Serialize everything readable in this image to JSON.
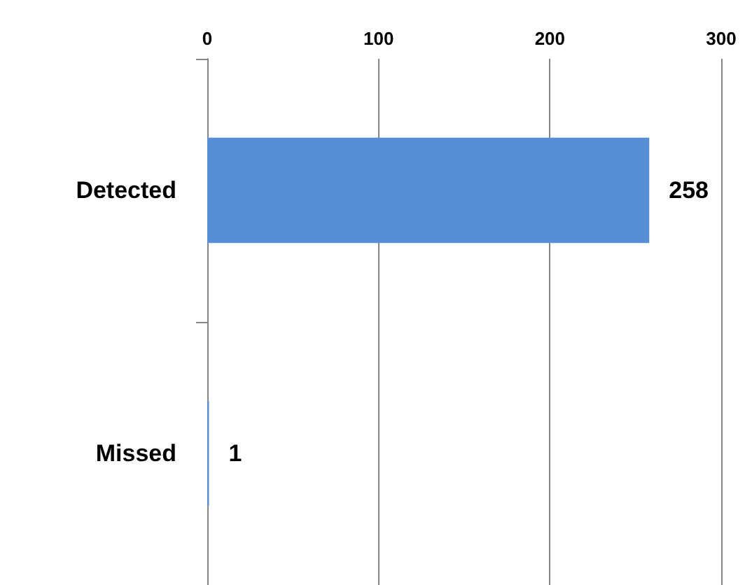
{
  "chart_data": {
    "type": "bar",
    "orientation": "horizontal",
    "categories": [
      "Detected",
      "Missed"
    ],
    "values": [
      258,
      1
    ],
    "color": "#558ed5",
    "xlim": [
      0,
      300
    ],
    "xticks": [
      0,
      100,
      200,
      300
    ],
    "grid": "x",
    "data_labels": true
  }
}
